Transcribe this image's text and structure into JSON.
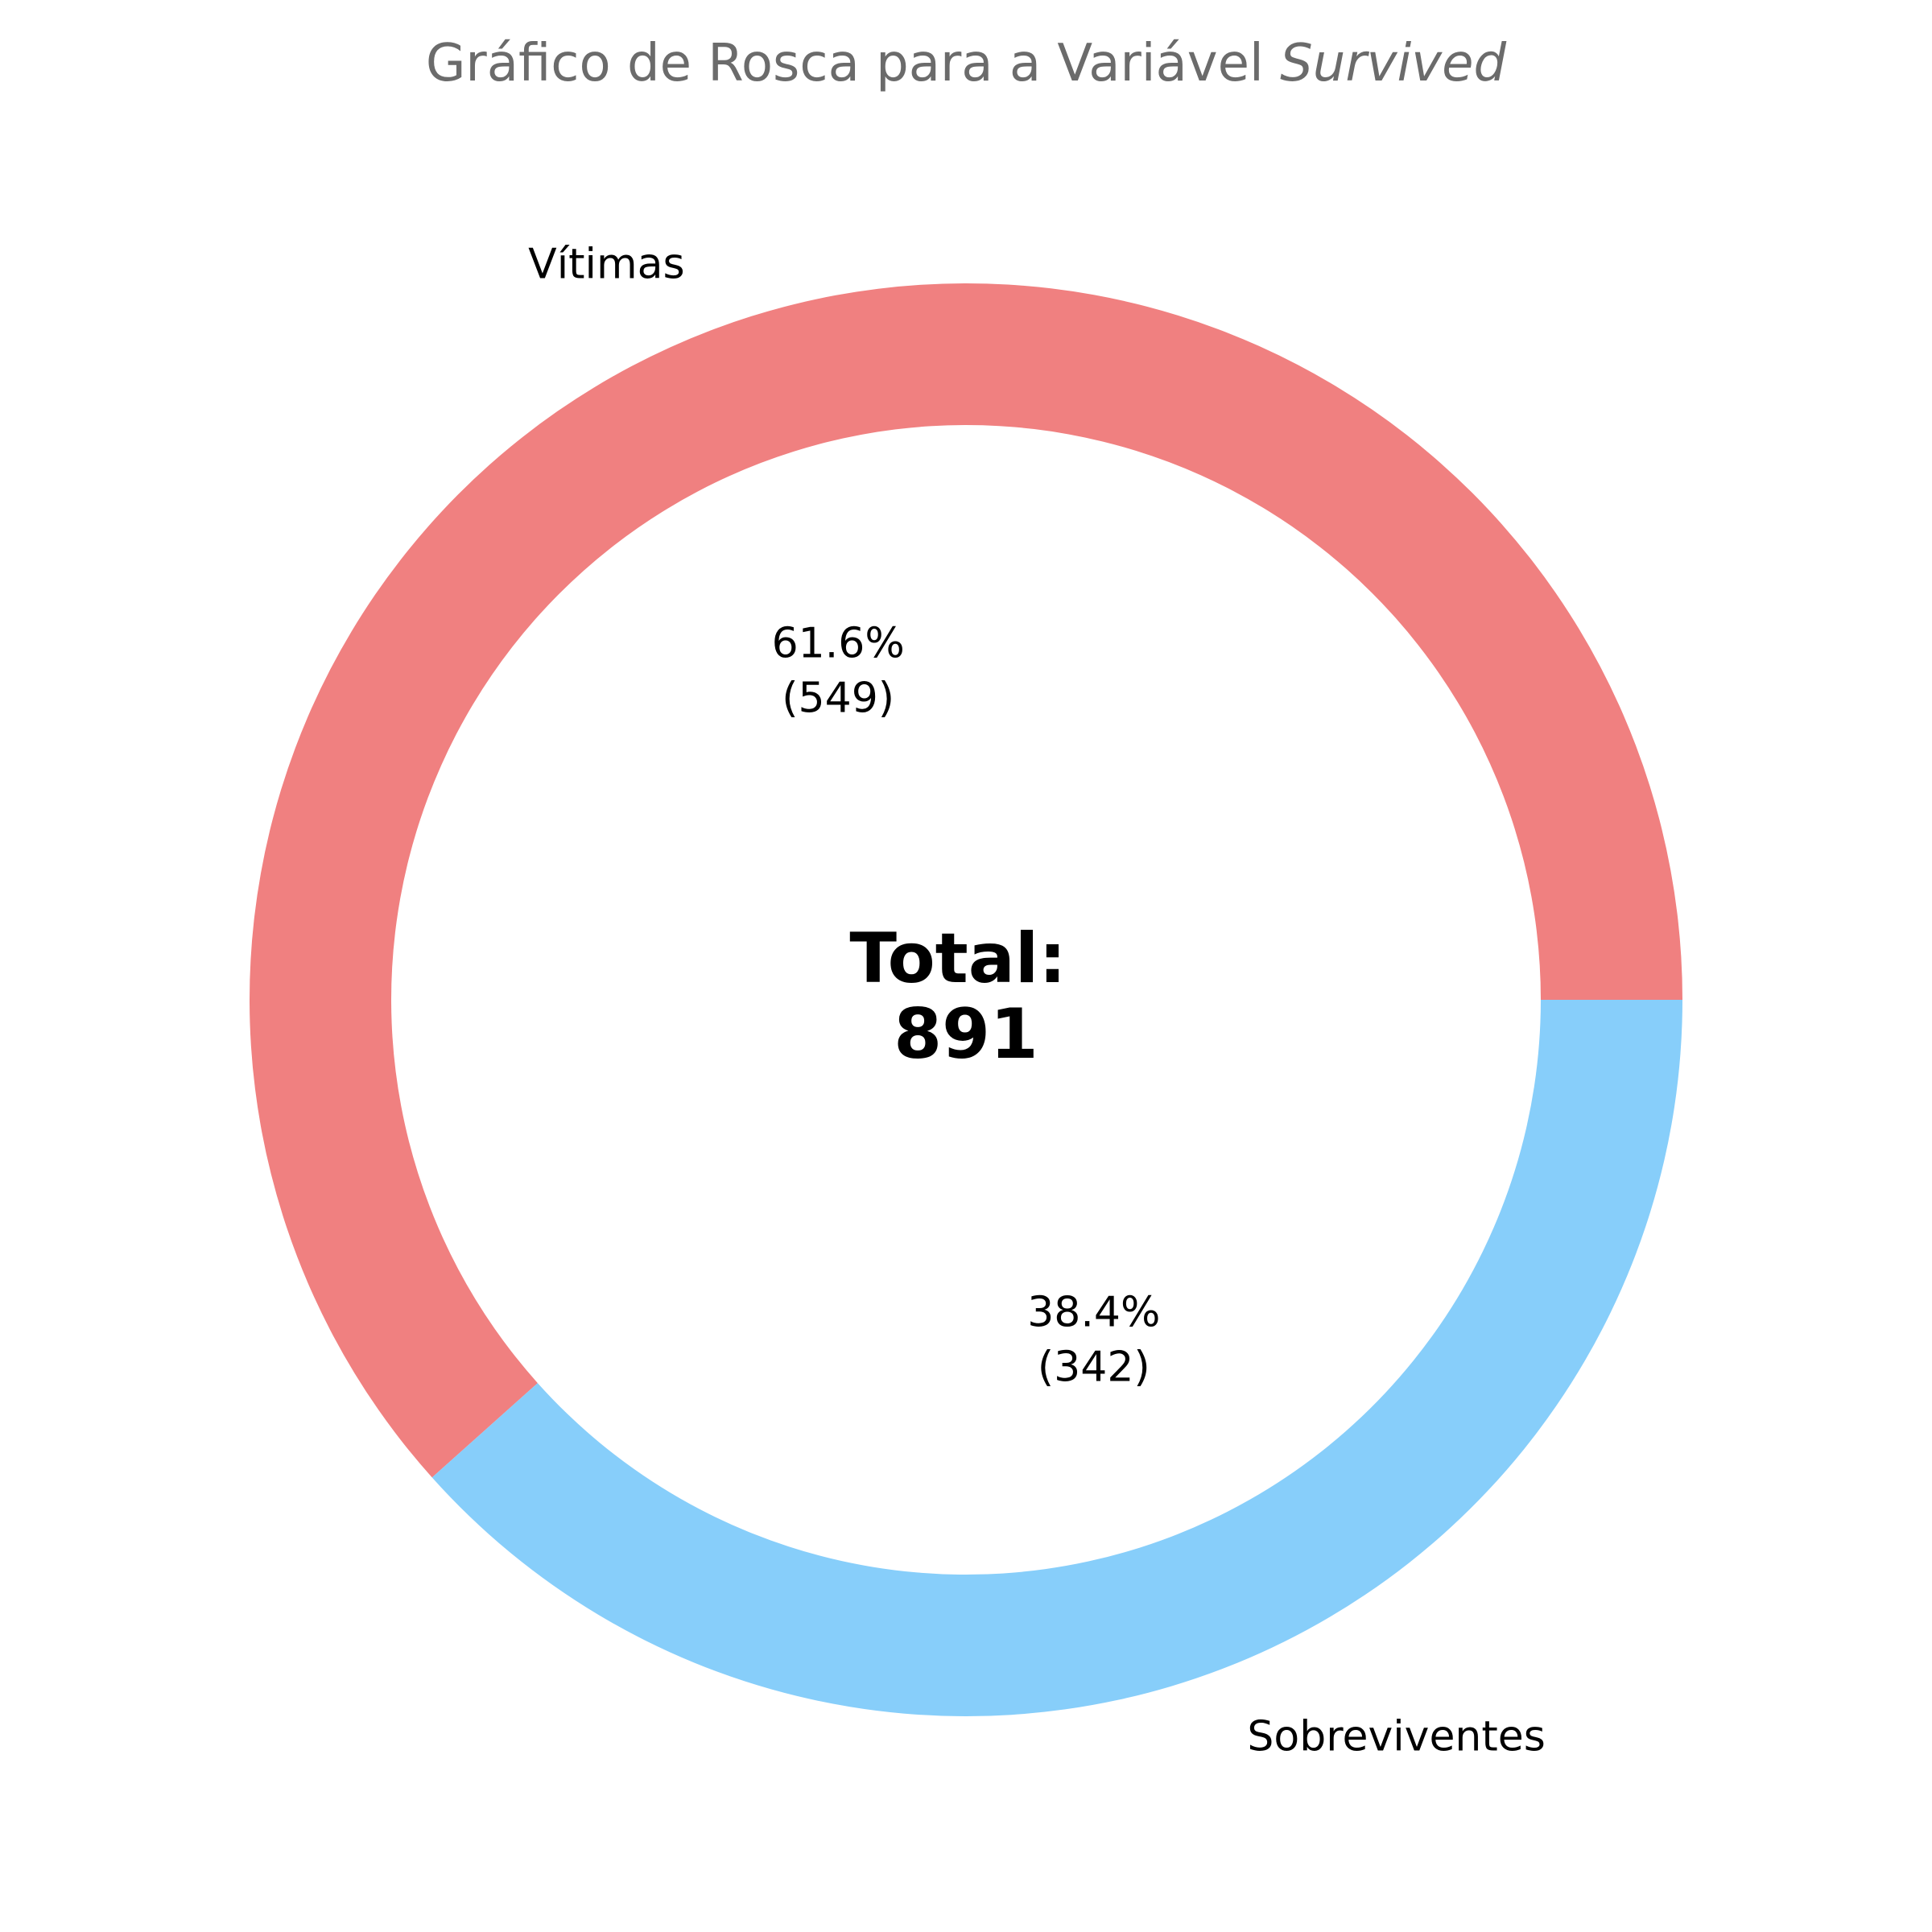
{
  "chart_data": {
    "type": "pie",
    "variant": "donut",
    "title": {
      "prefix": "Gráfico de Rosca para a Variável ",
      "emphasis": "Survived"
    },
    "categories": [
      "Vítimas",
      "Sobreviventes"
    ],
    "values": [
      549,
      342
    ],
    "percent_labels": [
      "61.6%",
      "38.4%"
    ],
    "count_labels": [
      "(549)",
      "(342)"
    ],
    "colors": [
      "#f08080",
      "#87cefa"
    ],
    "start_angle_deg": 0,
    "direction": "counterclockwise",
    "center_label": {
      "line1": "Total:",
      "line2": "891"
    }
  }
}
